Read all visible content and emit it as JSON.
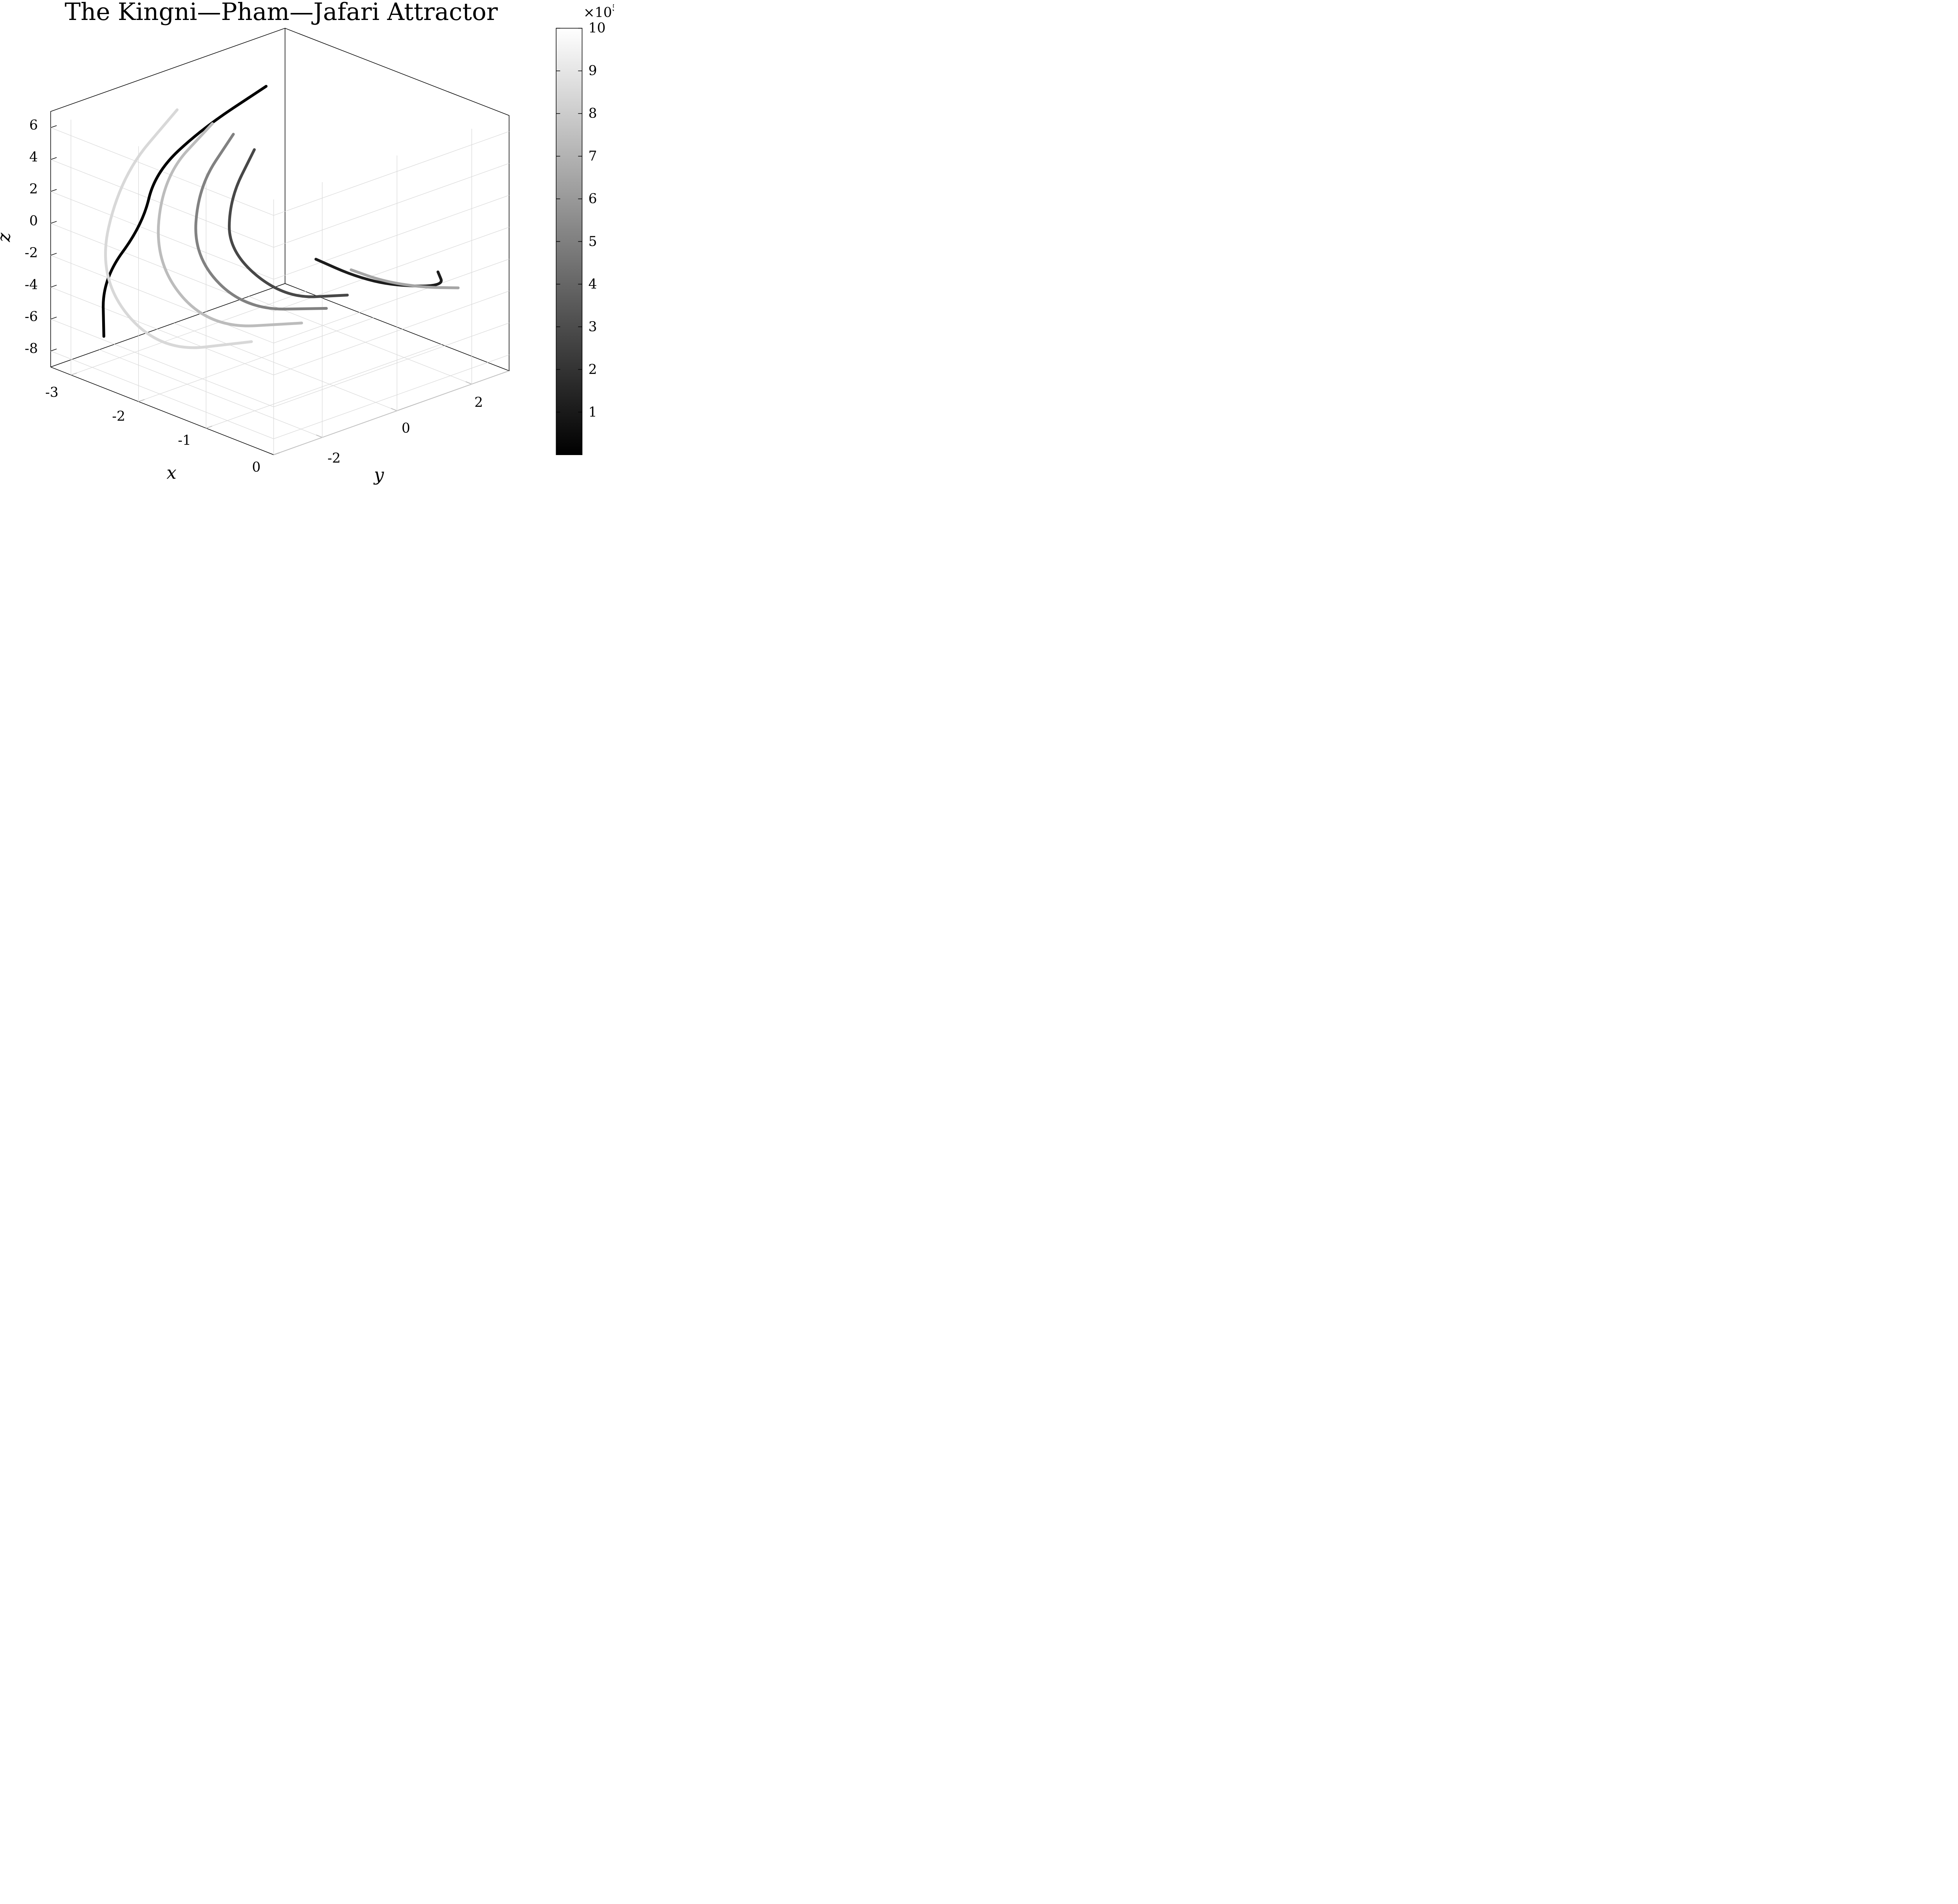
{
  "chart_data": {
    "type": "line",
    "title": "The Kingni—Pham—Jafari Attractor",
    "xlabel": "x",
    "ylabel": "y",
    "zlabel": "z",
    "xlim": [
      -3.3,
      0
    ],
    "ylim": [
      -3.3,
      3
    ],
    "zlim": [
      -9,
      7
    ],
    "x_ticks": [
      "-3",
      "-2",
      "-1",
      "0"
    ],
    "y_ticks": [
      "-2",
      "0",
      "2"
    ],
    "z_ticks": [
      "6",
      "4",
      "2",
      "0",
      "-2",
      "-4",
      "-6",
      "-8"
    ],
    "grid": true,
    "colormap": "gray",
    "colorbar": {
      "ticks": [
        "1",
        "2",
        "3",
        "4",
        "5",
        "6",
        "7",
        "8",
        "9",
        "10"
      ],
      "range": [
        0,
        10
      ],
      "exponent": "×10",
      "exponent_power": "5"
    },
    "series": [
      {
        "x": [
          -2.6,
          -3.0,
          -3.25,
          -3.1,
          -3.25,
          -2.9
        ],
        "y": [
          1.2,
          0.2,
          -0.6,
          -1.2,
          -2.0,
          -2.6
        ],
        "z": [
          6.0,
          3.5,
          1.0,
          -1.5,
          -4.5,
          -7.0
        ],
        "shade": 0.0
      },
      {
        "x": [
          -2.7,
          -3.1,
          -3.0,
          -2.2,
          -1.6
        ],
        "y": [
          -1.0,
          -1.8,
          -2.6,
          -2.4,
          -1.0
        ],
        "z": [
          6.2,
          2.0,
          -3.5,
          -7.0,
          -6.5
        ],
        "shade": 0.92
      },
      {
        "x": [
          -2.4,
          -2.8,
          -2.7,
          -2.0,
          -1.3
        ],
        "y": [
          -0.6,
          -1.2,
          -1.6,
          -1.4,
          -0.2
        ],
        "z": [
          5.5,
          2.0,
          -3.0,
          -6.0,
          -5.5
        ],
        "shade": 0.8
      },
      {
        "x": [
          -2.2,
          -2.5,
          -2.4,
          -1.8,
          -1.1
        ],
        "y": [
          -0.4,
          -0.8,
          -1.1,
          -0.8,
          0.1
        ],
        "z": [
          5.0,
          1.5,
          -2.5,
          -5.0,
          -4.5
        ],
        "shade": 0.55
      },
      {
        "x": [
          -2.0,
          -2.2,
          -2.1,
          -1.5,
          -0.9
        ],
        "y": [
          -0.2,
          -0.5,
          -0.7,
          -0.3,
          0.3
        ],
        "z": [
          4.2,
          1.0,
          -2.0,
          -4.2,
          -3.5
        ],
        "shade": 0.3
      },
      {
        "x": [
          -1.2,
          -0.9,
          -0.6,
          -0.3,
          -0.5
        ],
        "y": [
          0.0,
          0.5,
          1.0,
          1.8,
          2.0
        ],
        "z": [
          -1.5,
          -2.5,
          -3.0,
          -3.2,
          -2.8
        ],
        "shade": 0.12
      },
      {
        "x": [
          -0.9,
          -0.7,
          -0.4,
          -0.2
        ],
        "y": [
          0.4,
          0.9,
          1.4,
          2.0
        ],
        "z": [
          -2.0,
          -2.8,
          -3.1,
          -3.3
        ],
        "shade": 0.7
      }
    ]
  }
}
